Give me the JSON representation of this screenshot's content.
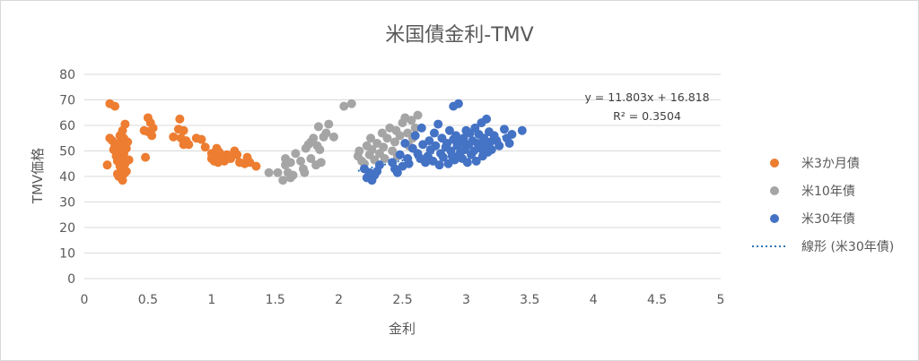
{
  "chart_data": {
    "type": "scatter",
    "title": "米国債金利-TMV",
    "xlabel": "金利",
    "ylabel": "TMV価格",
    "xlim": [
      0,
      5
    ],
    "ylim": [
      0,
      80
    ],
    "x_ticks": [
      "0",
      "0.5",
      "1",
      "1.5",
      "2",
      "2.5",
      "3",
      "3.5",
      "4",
      "4.5",
      "5"
    ],
    "y_ticks": [
      "0",
      "10",
      "20",
      "30",
      "40",
      "50",
      "60",
      "70",
      "80"
    ],
    "grid": "horizontal",
    "legend_position": "right",
    "trendline": {
      "name": "線形 (米30年債)",
      "series": "米30年債",
      "slope": 11.803,
      "intercept": 16.818,
      "x_range": [
        2.15,
        3.35
      ],
      "color": "#2e75b6",
      "equation_label": "y = 11.803x + 16.818",
      "r2_label": "R² = 0.3504"
    },
    "series": [
      {
        "name": "米3か月債",
        "color": "#ed7d31",
        "points": [
          [
            0.18,
            44.5
          ],
          [
            0.2,
            55
          ],
          [
            0.2,
            68.5
          ],
          [
            0.22,
            54
          ],
          [
            0.23,
            50.5
          ],
          [
            0.24,
            67.5
          ],
          [
            0.24,
            52
          ],
          [
            0.25,
            48
          ],
          [
            0.26,
            46
          ],
          [
            0.26,
            41
          ],
          [
            0.27,
            53
          ],
          [
            0.27,
            40
          ],
          [
            0.28,
            44
          ],
          [
            0.28,
            50
          ],
          [
            0.28,
            56
          ],
          [
            0.29,
            52
          ],
          [
            0.29,
            43
          ],
          [
            0.3,
            58
          ],
          [
            0.3,
            47
          ],
          [
            0.3,
            38.5
          ],
          [
            0.31,
            55
          ],
          [
            0.31,
            49
          ],
          [
            0.31,
            41
          ],
          [
            0.32,
            60.5
          ],
          [
            0.32,
            45
          ],
          [
            0.33,
            51
          ],
          [
            0.33,
            42
          ],
          [
            0.34,
            53.5
          ],
          [
            0.35,
            46.5
          ],
          [
            0.47,
            58
          ],
          [
            0.48,
            47.5
          ],
          [
            0.5,
            63
          ],
          [
            0.5,
            57.5
          ],
          [
            0.52,
            61
          ],
          [
            0.53,
            56
          ],
          [
            0.54,
            59
          ],
          [
            0.7,
            55.5
          ],
          [
            0.74,
            58.5
          ],
          [
            0.75,
            62.5
          ],
          [
            0.76,
            55
          ],
          [
            0.78,
            58
          ],
          [
            0.78,
            52.5
          ],
          [
            0.8,
            54
          ],
          [
            0.82,
            52.5
          ],
          [
            0.88,
            55
          ],
          [
            0.92,
            54.5
          ],
          [
            0.95,
            51.5
          ],
          [
            1.0,
            49
          ],
          [
            1.0,
            47
          ],
          [
            1.02,
            46
          ],
          [
            1.03,
            48
          ],
          [
            1.04,
            51
          ],
          [
            1.05,
            45.5
          ],
          [
            1.06,
            49.5
          ],
          [
            1.08,
            47
          ],
          [
            1.1,
            46
          ],
          [
            1.12,
            48.5
          ],
          [
            1.15,
            47
          ],
          [
            1.18,
            50
          ],
          [
            1.2,
            48.5
          ],
          [
            1.22,
            45.5
          ],
          [
            1.26,
            45
          ],
          [
            1.28,
            47.5
          ],
          [
            1.3,
            45.5
          ],
          [
            1.35,
            44
          ]
        ]
      },
      {
        "name": "米10年債",
        "color": "#a5a5a5",
        "points": [
          [
            1.45,
            41.5
          ],
          [
            1.52,
            41.5
          ],
          [
            1.56,
            38.5
          ],
          [
            1.58,
            44.5
          ],
          [
            1.58,
            47
          ],
          [
            1.6,
            41.5
          ],
          [
            1.62,
            39.5
          ],
          [
            1.62,
            45.5
          ],
          [
            1.64,
            40.5
          ],
          [
            1.66,
            49
          ],
          [
            1.7,
            46
          ],
          [
            1.72,
            43
          ],
          [
            1.73,
            41.5
          ],
          [
            1.74,
            51
          ],
          [
            1.76,
            52.5
          ],
          [
            1.78,
            47
          ],
          [
            1.78,
            53.5
          ],
          [
            1.8,
            55
          ],
          [
            1.82,
            44.5
          ],
          [
            1.83,
            52
          ],
          [
            1.84,
            59.5
          ],
          [
            1.85,
            50.5
          ],
          [
            1.86,
            45.5
          ],
          [
            1.88,
            55.5
          ],
          [
            1.9,
            57
          ],
          [
            1.92,
            60.5
          ],
          [
            1.96,
            55.5
          ],
          [
            2.04,
            67.5
          ],
          [
            2.1,
            68.5
          ],
          [
            2.15,
            48
          ],
          [
            2.16,
            50
          ],
          [
            2.18,
            46
          ],
          [
            2.2,
            45
          ],
          [
            2.22,
            52
          ],
          [
            2.24,
            48.5
          ],
          [
            2.25,
            55
          ],
          [
            2.26,
            50.5
          ],
          [
            2.28,
            46.5
          ],
          [
            2.3,
            53
          ],
          [
            2.32,
            49
          ],
          [
            2.34,
            57
          ],
          [
            2.35,
            51.5
          ],
          [
            2.36,
            47
          ],
          [
            2.38,
            55
          ],
          [
            2.4,
            59
          ],
          [
            2.42,
            50
          ],
          [
            2.44,
            53.5
          ],
          [
            2.45,
            58
          ],
          [
            2.46,
            48
          ],
          [
            2.48,
            56
          ],
          [
            2.5,
            61
          ],
          [
            2.52,
            63
          ],
          [
            2.54,
            57
          ],
          [
            2.55,
            52
          ],
          [
            2.57,
            62
          ],
          [
            2.58,
            55
          ],
          [
            2.6,
            59
          ],
          [
            2.62,
            64
          ]
        ]
      },
      {
        "name": "米30年債",
        "color": "#4472c4",
        "points": [
          [
            2.2,
            43
          ],
          [
            2.22,
            39.5
          ],
          [
            2.24,
            41.5
          ],
          [
            2.26,
            38.5
          ],
          [
            2.28,
            40.5
          ],
          [
            2.3,
            42
          ],
          [
            2.32,
            44.5
          ],
          [
            2.42,
            45.5
          ],
          [
            2.44,
            43
          ],
          [
            2.46,
            41.5
          ],
          [
            2.48,
            48.5
          ],
          [
            2.5,
            44
          ],
          [
            2.52,
            53
          ],
          [
            2.54,
            47
          ],
          [
            2.55,
            45
          ],
          [
            2.58,
            51
          ],
          [
            2.6,
            56
          ],
          [
            2.62,
            49
          ],
          [
            2.64,
            47
          ],
          [
            2.65,
            59
          ],
          [
            2.66,
            52.5
          ],
          [
            2.68,
            45.5
          ],
          [
            2.7,
            48
          ],
          [
            2.71,
            54
          ],
          [
            2.72,
            50.5
          ],
          [
            2.74,
            46
          ],
          [
            2.75,
            57
          ],
          [
            2.76,
            52
          ],
          [
            2.78,
            60.5
          ],
          [
            2.79,
            44.5
          ],
          [
            2.8,
            49
          ],
          [
            2.81,
            55
          ],
          [
            2.82,
            47.5
          ],
          [
            2.84,
            51.5
          ],
          [
            2.85,
            53
          ],
          [
            2.86,
            45
          ],
          [
            2.87,
            58
          ],
          [
            2.88,
            50
          ],
          [
            2.89,
            48
          ],
          [
            2.9,
            54.5
          ],
          [
            2.9,
            67.5
          ],
          [
            2.91,
            46.5
          ],
          [
            2.92,
            56
          ],
          [
            2.93,
            52
          ],
          [
            2.94,
            68.5
          ],
          [
            2.95,
            49
          ],
          [
            2.96,
            53.5
          ],
          [
            2.97,
            47
          ],
          [
            2.98,
            55
          ],
          [
            2.99,
            50.5
          ],
          [
            3.0,
            58
          ],
          [
            3.01,
            45.5
          ],
          [
            3.02,
            52.5
          ],
          [
            3.03,
            57
          ],
          [
            3.04,
            48.5
          ],
          [
            3.05,
            54
          ],
          [
            3.06,
            50
          ],
          [
            3.07,
            59
          ],
          [
            3.08,
            46
          ],
          [
            3.09,
            53
          ],
          [
            3.1,
            56.5
          ],
          [
            3.11,
            51
          ],
          [
            3.12,
            61
          ],
          [
            3.13,
            48
          ],
          [
            3.14,
            55
          ],
          [
            3.15,
            52
          ],
          [
            3.16,
            62.5
          ],
          [
            3.17,
            49.5
          ],
          [
            3.18,
            57.5
          ],
          [
            3.19,
            53.5
          ],
          [
            3.2,
            50.5
          ],
          [
            3.22,
            56
          ],
          [
            3.24,
            54
          ],
          [
            3.26,
            52
          ],
          [
            3.3,
            58.5
          ],
          [
            3.32,
            55
          ],
          [
            3.34,
            53
          ],
          [
            3.36,
            56.5
          ],
          [
            3.44,
            58
          ]
        ]
      }
    ]
  }
}
